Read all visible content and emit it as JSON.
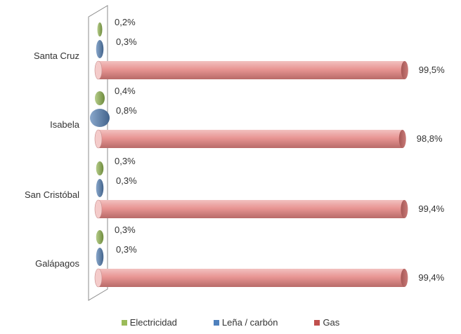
{
  "chart_data": {
    "type": "bar",
    "orientation": "horizontal",
    "style": "3d-cylinder",
    "categories": [
      "Santa Cruz",
      "Isabela",
      "San Cristóbal",
      "Galápagos"
    ],
    "series": [
      {
        "name": "Electricidad",
        "color": "#9bbb59",
        "values": [
          0.2,
          0.4,
          0.3,
          0.3
        ],
        "labels": [
          "0,2%",
          "0,4%",
          "0,3%",
          "0,3%"
        ]
      },
      {
        "name": "Leña / carbón",
        "color": "#4f81bd",
        "values": [
          0.3,
          0.8,
          0.3,
          0.3
        ],
        "labels": [
          "0,3%",
          "0,8%",
          "0,3%",
          "0,3%"
        ]
      },
      {
        "name": "Gas",
        "color": "#c0504d",
        "values": [
          99.5,
          98.8,
          99.4,
          99.4
        ],
        "labels": [
          "99,5%",
          "98,8%",
          "99,4%",
          "99,4%"
        ]
      }
    ],
    "xlim": [
      0,
      100
    ],
    "legend_position": "bottom",
    "grid": false
  }
}
